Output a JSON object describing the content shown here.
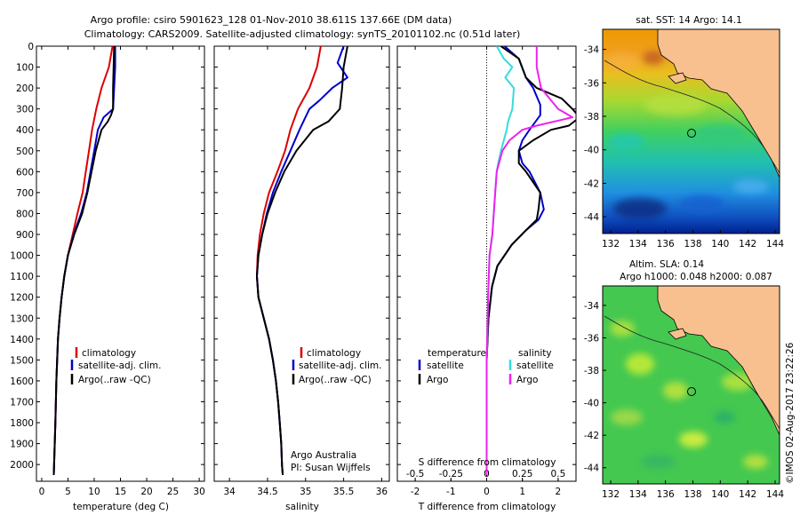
{
  "header": {
    "line1": "Argo profile: csiro 5901623_128 01-Nov-2010 38.611S 137.66E (DM data)",
    "line2": "Climatology: CARS2009. Satellite-adjusted climatology: synTS_20101102.nc (0.51d later)"
  },
  "colors": {
    "climatology": "#dd0000",
    "satellite": "#0000cc",
    "argo": "#000000",
    "sat_salinity": "#33dddd",
    "argo_salinity": "#ee22ee",
    "land": "#f9c08f"
  },
  "chart_data": [
    {
      "type": "line",
      "id": "temperature",
      "xlabel": "temperature (deg C)",
      "ylabel": "",
      "xlim": [
        -1,
        31
      ],
      "ylim": [
        2080,
        0
      ],
      "y_inverted": true,
      "xticks": [
        0,
        5,
        10,
        15,
        20,
        25,
        30
      ],
      "yticks": [
        0,
        100,
        200,
        300,
        400,
        500,
        600,
        700,
        800,
        900,
        1000,
        1100,
        1200,
        1300,
        1400,
        1500,
        1600,
        1700,
        1800,
        1900,
        2000
      ],
      "legend": [
        "climatology",
        "satellite-adj. clim.",
        "Argo(..raw -QC)"
      ],
      "series": [
        {
          "name": "climatology",
          "depth": [
            0,
            100,
            200,
            300,
            400,
            500,
            600,
            700,
            800,
            900,
            1000,
            1100,
            1200,
            1300,
            1400,
            1600,
            1800,
            2050
          ],
          "values": [
            13.5,
            12.8,
            11.4,
            10.4,
            9.6,
            9.0,
            8.4,
            7.8,
            6.8,
            5.9,
            5.0,
            4.3,
            3.8,
            3.4,
            3.1,
            2.8,
            2.6,
            2.3
          ]
        },
        {
          "name": "satellite-adj. clim.",
          "depth": [
            0,
            100,
            200,
            300,
            340,
            400,
            500,
            600,
            700,
            800,
            900,
            1000,
            1100,
            1200,
            1300,
            1400,
            1600,
            1800,
            2050
          ],
          "values": [
            14.0,
            14.0,
            13.8,
            13.6,
            11.8,
            10.7,
            10.0,
            9.3,
            8.6,
            7.5,
            6.1,
            5.0,
            4.3,
            3.8,
            3.4,
            3.1,
            2.8,
            2.6,
            2.3
          ]
        },
        {
          "name": "Argo(..raw -QC)",
          "depth": [
            0,
            100,
            200,
            300,
            330,
            360,
            400,
            500,
            600,
            700,
            800,
            900,
            1000,
            1100,
            1200,
            1300,
            1400,
            1600,
            1800,
            2050
          ],
          "values": [
            13.8,
            13.7,
            13.6,
            13.6,
            13.2,
            12.6,
            11.4,
            10.3,
            9.5,
            8.7,
            7.7,
            6.2,
            5.0,
            4.3,
            3.8,
            3.4,
            3.1,
            2.8,
            2.6,
            2.3
          ]
        }
      ]
    },
    {
      "type": "line",
      "id": "salinity",
      "xlabel": "salinity",
      "ylabel": "",
      "xlim": [
        33.8,
        36.1
      ],
      "ylim": [
        2080,
        0
      ],
      "y_inverted": true,
      "xticks": [
        34,
        34.5,
        35,
        35.5,
        36
      ],
      "xticklabels": [
        "34",
        "34.5",
        "35",
        "35.5",
        "36"
      ],
      "legend": [
        "climatology",
        "satellite-adj. clim.",
        "Argo(..raw -QC)"
      ],
      "annotation": [
        "Argo Australia",
        "PI: Susan Wijffels"
      ],
      "series": [
        {
          "name": "climatology",
          "depth": [
            0,
            100,
            200,
            300,
            400,
            500,
            600,
            700,
            800,
            900,
            1000,
            1100,
            1200,
            1300,
            1400,
            1500,
            1600,
            1700,
            1800,
            1900,
            2000,
            2050
          ],
          "values": [
            35.2,
            35.15,
            35.05,
            34.9,
            34.8,
            34.73,
            34.63,
            34.52,
            34.45,
            34.4,
            34.37,
            34.36,
            34.38,
            34.45,
            34.52,
            34.57,
            34.61,
            34.64,
            34.66,
            34.68,
            34.69,
            34.7
          ]
        },
        {
          "name": "satellite-adj. clim.",
          "depth": [
            0,
            80,
            150,
            200,
            260,
            300,
            400,
            500,
            600,
            700,
            800,
            900,
            1000,
            1100,
            1200,
            1300,
            1400,
            1500,
            1600,
            1700,
            1800,
            1900,
            2000,
            2050
          ],
          "values": [
            35.5,
            35.42,
            35.55,
            35.35,
            35.18,
            35.05,
            34.92,
            34.8,
            34.68,
            34.57,
            34.49,
            34.43,
            34.38,
            34.36,
            34.38,
            34.45,
            34.52,
            34.57,
            34.61,
            34.64,
            34.66,
            34.68,
            34.69,
            34.7
          ]
        },
        {
          "name": "Argo(..raw -QC)",
          "depth": [
            0,
            100,
            200,
            300,
            360,
            400,
            500,
            600,
            700,
            800,
            900,
            1000,
            1100,
            1200,
            1300,
            1400,
            1500,
            1600,
            1700,
            1800,
            1900,
            2000,
            2050
          ],
          "values": [
            35.55,
            35.5,
            35.48,
            35.45,
            35.3,
            35.1,
            34.88,
            34.72,
            34.6,
            34.5,
            34.43,
            34.38,
            34.36,
            34.38,
            34.45,
            34.52,
            34.57,
            34.61,
            34.64,
            34.66,
            34.68,
            34.69,
            34.7
          ]
        }
      ]
    },
    {
      "type": "line",
      "id": "difference",
      "xlabel": "T difference from climatology",
      "xlabel2": "S difference from climatology",
      "xlim": [
        -2.5,
        2.5
      ],
      "ylim": [
        2080,
        0
      ],
      "y_inverted": true,
      "xticks": [
        -2,
        -1,
        0,
        1,
        2
      ],
      "xticks2": [
        -0.5,
        -0.25,
        0,
        0.25,
        0.5
      ],
      "xticks2_labels": [
        "-0.5",
        "-0.25",
        "0",
        "0.25",
        "0.5"
      ],
      "legend_temperature": [
        "temperature",
        "satellite",
        "Argo"
      ],
      "legend_salinity": [
        "salinity",
        "satellite",
        "Argo"
      ],
      "series": [
        {
          "name": "temperature satellite",
          "depth": [
            0,
            60,
            150,
            200,
            280,
            330,
            400,
            450,
            500,
            560,
            600,
            700,
            780,
            830,
            880,
            950,
            1050,
            1150,
            1300,
            1500,
            1700,
            1900,
            2050
          ],
          "values": [
            0.5,
            0.9,
            1.1,
            1.3,
            1.5,
            1.5,
            1.2,
            1.0,
            0.9,
            1.0,
            1.2,
            1.5,
            1.6,
            1.45,
            1.1,
            0.7,
            0.3,
            0.15,
            0.05,
            0.0,
            0.0,
            0.0,
            0.0
          ]
        },
        {
          "name": "temperature Argo",
          "depth": [
            0,
            60,
            150,
            200,
            250,
            300,
            340,
            380,
            400,
            450,
            500,
            560,
            600,
            700,
            780,
            830,
            880,
            950,
            1050,
            1150,
            1300,
            1500,
            1700,
            1900,
            2050
          ],
          "values": [
            0.4,
            0.9,
            1.1,
            1.4,
            2.1,
            2.4,
            2.6,
            2.3,
            1.8,
            1.3,
            0.9,
            0.9,
            1.1,
            1.5,
            1.45,
            1.4,
            1.1,
            0.7,
            0.3,
            0.15,
            0.05,
            0.0,
            0.0,
            0.0,
            0.0
          ]
        },
        {
          "name": "salinity satellite",
          "depth": [
            0,
            60,
            100,
            150,
            200,
            300,
            360,
            400,
            450,
            500,
            560,
            600,
            700,
            800,
            900,
            1000,
            1200,
            1500,
            1800,
            2050
          ],
          "values": [
            0.07,
            0.12,
            0.18,
            0.13,
            0.19,
            0.18,
            0.15,
            0.14,
            0.12,
            0.1,
            0.08,
            0.07,
            0.06,
            0.05,
            0.04,
            0.02,
            0.01,
            0.0,
            0.0,
            0.0
          ]
        },
        {
          "name": "salinity Argo",
          "depth": [
            0,
            100,
            200,
            300,
            340,
            380,
            400,
            450,
            500,
            550,
            600,
            700,
            800,
            900,
            1000,
            1200,
            1500,
            1800,
            2050
          ],
          "values": [
            0.35,
            0.35,
            0.38,
            0.5,
            0.6,
            0.35,
            0.25,
            0.16,
            0.11,
            0.09,
            0.07,
            0.06,
            0.05,
            0.04,
            0.02,
            0.01,
            0.0,
            0.0,
            0.0
          ]
        }
      ]
    }
  ],
  "maps": {
    "sst": {
      "title": "sat. SST: 14 Argo: 14.1",
      "yticks": [
        "-34",
        "-36",
        "-38",
        "-40",
        "-42",
        "-44"
      ],
      "xticks": [
        "132",
        "134",
        "136",
        "138",
        "140",
        "142",
        "144"
      ]
    },
    "sla": {
      "title1": "Altim. SLA: 0.14",
      "title2": "Argo h1000: 0.048 h2000: 0.087",
      "yticks": [
        "-34",
        "-36",
        "-38",
        "-40",
        "-42",
        "-44"
      ],
      "xticks": [
        "132",
        "134",
        "136",
        "138",
        "140",
        "142",
        "144"
      ]
    },
    "credit": "©IMOS 02-Aug-2017 23:22:26"
  }
}
